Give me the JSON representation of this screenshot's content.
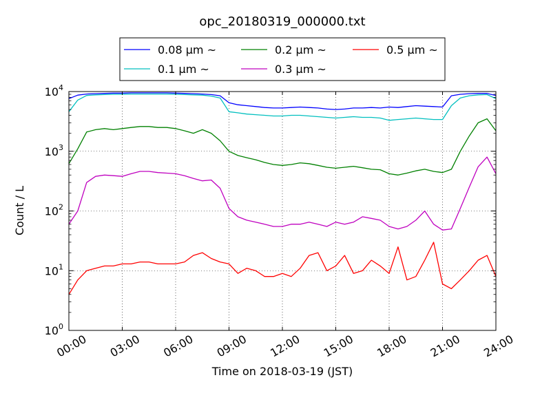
{
  "chart_data": {
    "type": "line",
    "title": "opc_20180319_000000.txt",
    "xlabel": "Time on 2018-03-19 (JST)",
    "ylabel": "Count / L",
    "yscale": "log",
    "ylim": [
      1,
      10000
    ],
    "xlim": [
      "00:00",
      "24:00"
    ],
    "x_tick_labels": [
      "00:00",
      "03:00",
      "06:00",
      "09:00",
      "12:00",
      "15:00",
      "18:00",
      "21:00",
      "24:00"
    ],
    "y_tick_labels": [
      {
        "base": "10",
        "exp": "0"
      },
      {
        "base": "10",
        "exp": "1"
      },
      {
        "base": "10",
        "exp": "2"
      },
      {
        "base": "10",
        "exp": "3"
      },
      {
        "base": "10",
        "exp": "4"
      }
    ],
    "grid": true,
    "legend_position": "top-center",
    "x_hours": [
      0,
      0.5,
      1,
      1.5,
      2,
      2.5,
      3,
      3.5,
      4,
      4.5,
      5,
      5.5,
      6,
      6.5,
      7,
      7.5,
      8,
      8.5,
      9,
      9.5,
      10,
      10.5,
      11,
      11.5,
      12,
      12.5,
      13,
      13.5,
      14,
      14.5,
      15,
      15.5,
      16,
      16.5,
      17,
      17.5,
      18,
      18.5,
      19,
      19.5,
      20,
      20.5,
      21,
      21.5,
      22,
      22.5,
      23,
      23.5,
      24
    ],
    "series": [
      {
        "name": "0.08 μm ~",
        "color": "#0000ff",
        "values": [
          7600,
          8700,
          9100,
          9200,
          9300,
          9400,
          9400,
          9500,
          9500,
          9500,
          9500,
          9500,
          9400,
          9300,
          9200,
          9100,
          8900,
          8500,
          6500,
          6000,
          5800,
          5600,
          5400,
          5300,
          5300,
          5400,
          5500,
          5400,
          5300,
          5100,
          5000,
          5100,
          5300,
          5300,
          5400,
          5300,
          5500,
          5400,
          5600,
          5800,
          5700,
          5600,
          5500,
          8500,
          9000,
          9200,
          9300,
          9300,
          8600
        ]
      },
      {
        "name": "0.1 μm ~",
        "color": "#00bfbf",
        "values": [
          4600,
          7200,
          8600,
          8800,
          8900,
          9000,
          9000,
          9100,
          9100,
          9100,
          9100,
          9100,
          9000,
          8900,
          8800,
          8700,
          8400,
          7800,
          4600,
          4400,
          4200,
          4100,
          4000,
          3900,
          3900,
          4000,
          4000,
          3900,
          3800,
          3700,
          3600,
          3700,
          3800,
          3700,
          3700,
          3600,
          3300,
          3400,
          3500,
          3600,
          3500,
          3400,
          3400,
          5800,
          7800,
          8500,
          8800,
          8900,
          7600
        ]
      },
      {
        "name": "0.2 μm ~",
        "color": "#008000",
        "values": [
          620,
          1100,
          2100,
          2300,
          2400,
          2300,
          2400,
          2500,
          2600,
          2600,
          2500,
          2500,
          2400,
          2200,
          2000,
          2300,
          2000,
          1500,
          1000,
          850,
          780,
          720,
          650,
          600,
          580,
          600,
          640,
          620,
          580,
          540,
          520,
          540,
          560,
          530,
          500,
          490,
          420,
          400,
          430,
          470,
          500,
          460,
          440,
          500,
          1000,
          1800,
          3000,
          3500,
          2200
        ]
      },
      {
        "name": "0.3 μm ~",
        "color": "#bf00bf",
        "values": [
          60,
          100,
          300,
          380,
          400,
          390,
          380,
          420,
          460,
          460,
          440,
          430,
          420,
          390,
          350,
          320,
          330,
          240,
          110,
          80,
          70,
          65,
          60,
          55,
          55,
          60,
          60,
          65,
          60,
          55,
          65,
          60,
          65,
          80,
          75,
          70,
          55,
          50,
          55,
          70,
          100,
          60,
          48,
          50,
          110,
          250,
          550,
          800,
          420
        ]
      },
      {
        "name": "0.5 μm ~",
        "color": "#ff0000",
        "values": [
          4,
          7,
          10,
          11,
          12,
          12,
          13,
          13,
          14,
          14,
          13,
          13,
          13,
          14,
          18,
          20,
          16,
          14,
          13,
          9,
          11,
          10,
          8,
          8,
          9,
          8,
          11,
          18,
          20,
          10,
          12,
          18,
          9,
          10,
          15,
          12,
          9,
          25,
          7,
          8,
          15,
          30,
          6,
          5,
          7,
          10,
          15,
          18,
          8
        ]
      }
    ]
  }
}
